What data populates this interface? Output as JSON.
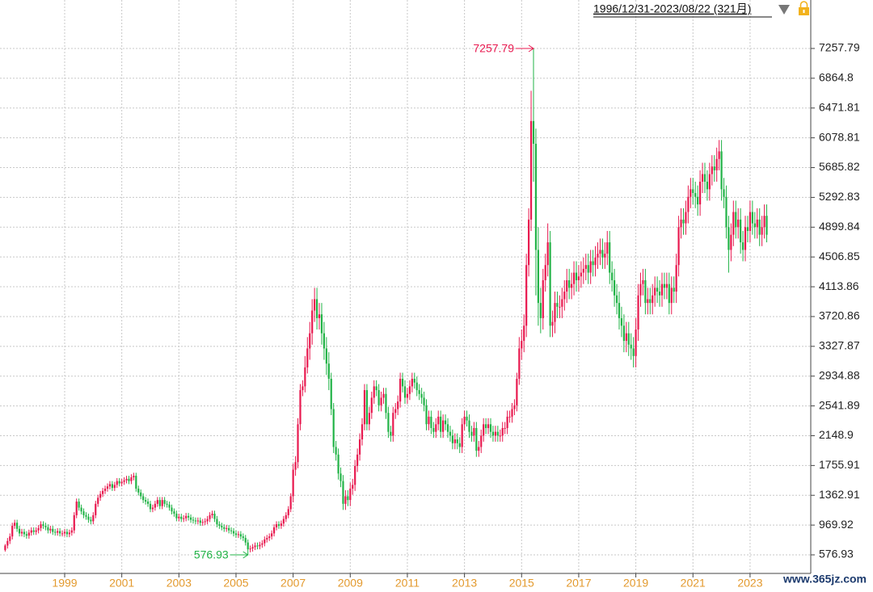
{
  "chart_data": {
    "type": "candlestick",
    "header": "1996/12/31-2023/08/22 (321月)",
    "watermark": "www.365jz.com",
    "up_color": "#e8194f",
    "down_color": "#22b347",
    "grid": true,
    "ylim": [
      332,
      7897
    ],
    "xlim": [
      -2.17,
      338.5
    ],
    "yticks": [
      576.93,
      969.92,
      1362.91,
      1755.91,
      2148.9,
      2541.89,
      2934.88,
      3327.87,
      3720.86,
      4113.86,
      4506.85,
      4899.84,
      5292.83,
      5685.82,
      6078.81,
      6471.81,
      6864.8,
      7257.79
    ],
    "xticks": [
      {
        "value": 25,
        "label": "1999"
      },
      {
        "value": 49,
        "label": "2001"
      },
      {
        "value": 73,
        "label": "2003"
      },
      {
        "value": 97,
        "label": "2005"
      },
      {
        "value": 121,
        "label": "2007"
      },
      {
        "value": 145,
        "label": "2009"
      },
      {
        "value": 169,
        "label": "2011"
      },
      {
        "value": 193,
        "label": "2013"
      },
      {
        "value": 217,
        "label": "2015"
      },
      {
        "value": 241,
        "label": "2017"
      },
      {
        "value": 265,
        "label": "2019"
      },
      {
        "value": 289,
        "label": "2021"
      },
      {
        "value": 313,
        "label": "2023"
      }
    ],
    "open": [
      640,
      700,
      760,
      820,
      960,
      1000,
      920,
      860,
      880,
      850,
      830,
      870,
      900,
      880,
      900,
      930,
      980,
      960,
      940,
      900,
      920,
      880,
      870,
      890,
      860,
      860,
      880,
      850,
      870,
      900,
      1100,
      1280,
      1200,
      1150,
      1100,
      1080,
      1040,
      1020,
      1100,
      1250,
      1330,
      1380,
      1420,
      1450,
      1480,
      1510,
      1460,
      1500,
      1550,
      1520,
      1540,
      1560,
      1580,
      1550,
      1600,
      1620,
      1450,
      1400,
      1350,
      1300,
      1280,
      1250,
      1180,
      1200,
      1250,
      1300,
      1220,
      1300,
      1250,
      1240,
      1200,
      1150,
      1120,
      1060,
      1080,
      1050,
      1060,
      1090,
      1070,
      1040,
      1030,
      1020,
      1030,
      1000,
      1010,
      1020,
      1050,
      1100,
      1120,
      1050,
      980,
      960,
      940,
      920,
      930,
      900,
      890,
      860,
      840,
      850,
      820,
      800,
      740,
      650,
      660,
      680,
      700,
      690,
      710,
      730,
      780,
      800,
      820,
      860,
      940,
      980,
      960,
      990,
      1050,
      1100,
      1180,
      1350,
      1700,
      1800,
      2300,
      2750,
      2800,
      3050,
      3300,
      3500,
      3800,
      3950,
      3700,
      3750,
      3500,
      3300,
      3100,
      2900,
      2500,
      2000,
      1900,
      1650,
      1550,
      1250,
      1350,
      1300,
      1450,
      1500,
      1750,
      1900,
      2100,
      2300,
      2750,
      2300,
      2450,
      2650,
      2800,
      2750,
      2550,
      2650,
      2700,
      2450,
      2200,
      2150,
      2450,
      2500,
      2600,
      2900,
      2800,
      2650,
      2700,
      2800,
      2900,
      2850,
      2750,
      2700,
      2650,
      2550,
      2300,
      2400,
      2250,
      2200,
      2300,
      2400,
      2200,
      2350,
      2300,
      2200,
      2150,
      2050,
      2100,
      2050,
      2000,
      2300,
      2400,
      2350,
      2200,
      2150,
      2250,
      1950,
      2000,
      2150,
      2300,
      2250,
      2300,
      2200,
      2150,
      2200,
      2150,
      2150,
      2250,
      2250,
      2400,
      2400,
      2500,
      2550,
      2900,
      3300,
      3400,
      3600,
      4400,
      5000,
      6300,
      6000,
      4600,
      3900,
      3700,
      4200,
      4400,
      4700,
      3600,
      3650,
      3900,
      3850,
      3850,
      3950,
      4050,
      4200,
      4100,
      4150,
      4300,
      4200,
      4250,
      4300,
      4350,
      4400,
      4300,
      4450,
      4400,
      4500,
      4550,
      4600,
      4500,
      4550,
      4700,
      4300,
      4200,
      4000,
      3900,
      3700,
      3600,
      3400,
      3500,
      3350,
      3300,
      3200,
      3550,
      4000,
      4150,
      4200,
      3900,
      3950,
      3900,
      4000,
      4100,
      4050,
      4000,
      4150,
      4100,
      4150,
      3900,
      4100,
      4050,
      4400,
      4900,
      5000,
      4950,
      5100,
      5300,
      5400,
      5350,
      5300,
      5200,
      5500,
      5600,
      5500,
      5400,
      5600,
      5700,
      5650,
      5800,
      5900,
      5400,
      5300,
      4900,
      4600,
      4800,
      5100,
      4900,
      5000,
      4700,
      4600,
      4900,
      4850,
      5100,
      4950,
      4900,
      5000,
      4800,
      4900,
      5050
    ],
    "high": [
      720,
      800,
      860,
      1000,
      1040,
      1040,
      960,
      920,
      920,
      890,
      910,
      940,
      940,
      940,
      970,
      1020,
      1020,
      1000,
      980,
      960,
      960,
      920,
      930,
      930,
      900,
      920,
      920,
      910,
      940,
      1140,
      1320,
      1320,
      1240,
      1190,
      1140,
      1120,
      1080,
      1140,
      1290,
      1370,
      1420,
      1460,
      1490,
      1520,
      1550,
      1550,
      1540,
      1590,
      1590,
      1580,
      1600,
      1620,
      1620,
      1640,
      1660,
      1660,
      1490,
      1440,
      1390,
      1340,
      1320,
      1290,
      1240,
      1290,
      1340,
      1340,
      1340,
      1340,
      1290,
      1280,
      1240,
      1190,
      1160,
      1120,
      1120,
      1100,
      1130,
      1130,
      1110,
      1080,
      1070,
      1070,
      1070,
      1050,
      1060,
      1090,
      1140,
      1160,
      1160,
      1090,
      1020,
      1000,
      980,
      970,
      970,
      940,
      930,
      900,
      890,
      890,
      860,
      840,
      780,
      700,
      720,
      740,
      740,
      750,
      770,
      820,
      840,
      860,
      900,
      980,
      1020,
      1020,
      1030,
      1090,
      1140,
      1220,
      1390,
      1780,
      1880,
      2380,
      2830,
      2880,
      3200,
      3450,
      3650,
      3950,
      4100,
      4100,
      3900,
      3900,
      3650,
      3450,
      3250,
      2980,
      2580,
      2080,
      1980,
      1730,
      1630,
      1430,
      1430,
      1530,
      1580,
      1830,
      1980,
      2180,
      2380,
      2830,
      2830,
      2530,
      2730,
      2880,
      2880,
      2830,
      2730,
      2780,
      2780,
      2530,
      2280,
      2530,
      2580,
      2680,
      2980,
      2980,
      2880,
      2780,
      2880,
      2980,
      2980,
      2930,
      2830,
      2780,
      2730,
      2630,
      2480,
      2480,
      2330,
      2380,
      2480,
      2480,
      2430,
      2430,
      2380,
      2280,
      2230,
      2180,
      2180,
      2130,
      2380,
      2480,
      2480,
      2430,
      2280,
      2330,
      2330,
      2080,
      2230,
      2380,
      2380,
      2380,
      2380,
      2280,
      2280,
      2280,
      2230,
      2330,
      2330,
      2480,
      2480,
      2580,
      2630,
      2980,
      3450,
      3550,
      3750,
      4550,
      5150,
      6700,
      7257.79,
      6200,
      4900,
      4100,
      4350,
      4550,
      4950,
      4850,
      3800,
      4050,
      4050,
      4000,
      4100,
      4200,
      4350,
      4350,
      4300,
      4450,
      4450,
      4400,
      4450,
      4500,
      4550,
      4550,
      4600,
      4600,
      4650,
      4700,
      4750,
      4750,
      4700,
      4850,
      4850,
      4450,
      4350,
      4150,
      4050,
      3850,
      3750,
      3650,
      3650,
      3500,
      3450,
      3700,
      4150,
      4300,
      4350,
      4350,
      4100,
      4100,
      4150,
      4250,
      4250,
      4200,
      4300,
      4300,
      4300,
      4300,
      4250,
      4250,
      4550,
      5050,
      5150,
      5150,
      5250,
      5450,
      5550,
      5550,
      5500,
      5450,
      5650,
      5750,
      5750,
      5650,
      5750,
      5850,
      5850,
      5950,
      6050,
      6050,
      5550,
      5450,
      5050,
      4950,
      5250,
      5250,
      5150,
      5150,
      4850,
      5050,
      5050,
      5250,
      5250,
      5100,
      5150,
      5150,
      5050,
      5200,
      5200
    ],
    "low": [
      620,
      660,
      720,
      780,
      920,
      880,
      820,
      820,
      810,
      790,
      790,
      830,
      840,
      840,
      860,
      890,
      920,
      900,
      860,
      860,
      840,
      830,
      830,
      820,
      820,
      820,
      810,
      810,
      830,
      860,
      1060,
      1160,
      1110,
      1060,
      1040,
      1000,
      980,
      980,
      1060,
      1210,
      1290,
      1340,
      1380,
      1410,
      1440,
      1420,
      1420,
      1460,
      1480,
      1480,
      1500,
      1520,
      1510,
      1510,
      1560,
      1410,
      1360,
      1310,
      1260,
      1240,
      1210,
      1140,
      1140,
      1160,
      1210,
      1180,
      1180,
      1210,
      1200,
      1160,
      1110,
      1080,
      1020,
      1020,
      1010,
      1010,
      1020,
      1030,
      1000,
      990,
      980,
      980,
      960,
      960,
      970,
      980,
      1010,
      1060,
      1010,
      940,
      920,
      900,
      880,
      880,
      860,
      850,
      820,
      800,
      800,
      780,
      760,
      700,
      576.93,
      610,
      620,
      640,
      650,
      650,
      670,
      690,
      740,
      760,
      780,
      820,
      900,
      920,
      920,
      950,
      1010,
      1060,
      1140,
      1270,
      1620,
      1720,
      2220,
      2670,
      2720,
      2970,
      3150,
      3350,
      3650,
      3550,
      3550,
      3350,
      3150,
      2950,
      2750,
      2420,
      1920,
      1820,
      1570,
      1470,
      1170,
      1170,
      1220,
      1220,
      1370,
      1420,
      1670,
      1820,
      2020,
      2220,
      2220,
      2220,
      2370,
      2570,
      2670,
      2470,
      2470,
      2570,
      2370,
      2120,
      2070,
      2070,
      2370,
      2420,
      2520,
      2720,
      2570,
      2570,
      2620,
      2720,
      2770,
      2670,
      2620,
      2570,
      2470,
      2220,
      2220,
      2170,
      2120,
      2120,
      2220,
      2120,
      2120,
      2220,
      2120,
      2070,
      1970,
      1970,
      1970,
      1920,
      1920,
      2220,
      2270,
      2120,
      2070,
      2070,
      1870,
      1870,
      1920,
      2070,
      2170,
      2170,
      2120,
      2070,
      2070,
      2070,
      2070,
      2070,
      2170,
      2170,
      2320,
      2320,
      2420,
      2470,
      2820,
      3150,
      3250,
      3450,
      4250,
      4850,
      5500,
      4000,
      3600,
      3500,
      3550,
      4050,
      4250,
      3450,
      3450,
      3500,
      3700,
      3700,
      3700,
      3800,
      3900,
      3950,
      3950,
      4000,
      4050,
      4050,
      4100,
      4150,
      4200,
      4150,
      4150,
      4250,
      4250,
      4350,
      4400,
      4350,
      4350,
      4400,
      4150,
      4050,
      3850,
      3750,
      3550,
      3450,
      3250,
      3250,
      3200,
      3150,
      3050,
      3050,
      3400,
      3850,
      4000,
      3750,
      3750,
      3750,
      3750,
      3850,
      3900,
      3850,
      3850,
      3950,
      3950,
      3750,
      3750,
      3900,
      3900,
      4250,
      4750,
      4800,
      4800,
      4950,
      5150,
      5200,
      5150,
      5050,
      5050,
      5350,
      5350,
      5250,
      5250,
      5450,
      5500,
      5500,
      5650,
      5250,
      5150,
      4750,
      4300,
      4450,
      4650,
      4750,
      4750,
      4550,
      4450,
      4450,
      4700,
      4700,
      4800,
      4750,
      4750,
      4650,
      4650,
      4750,
      4700
    ],
    "close": [
      700,
      760,
      820,
      960,
      1000,
      920,
      860,
      880,
      850,
      830,
      870,
      900,
      880,
      900,
      930,
      980,
      960,
      940,
      900,
      920,
      880,
      870,
      890,
      860,
      860,
      880,
      850,
      870,
      900,
      1100,
      1280,
      1200,
      1150,
      1100,
      1080,
      1040,
      1020,
      1100,
      1250,
      1330,
      1380,
      1420,
      1450,
      1480,
      1510,
      1460,
      1500,
      1550,
      1520,
      1540,
      1560,
      1580,
      1550,
      1600,
      1620,
      1450,
      1400,
      1350,
      1300,
      1280,
      1250,
      1180,
      1200,
      1250,
      1300,
      1220,
      1300,
      1250,
      1240,
      1200,
      1150,
      1120,
      1060,
      1080,
      1050,
      1060,
      1090,
      1070,
      1040,
      1030,
      1020,
      1030,
      1000,
      1010,
      1020,
      1050,
      1100,
      1120,
      1050,
      980,
      960,
      940,
      920,
      930,
      900,
      890,
      860,
      840,
      850,
      820,
      800,
      740,
      650,
      660,
      680,
      700,
      690,
      710,
      730,
      780,
      800,
      820,
      860,
      940,
      980,
      960,
      990,
      1050,
      1100,
      1180,
      1350,
      1700,
      1800,
      2300,
      2750,
      2800,
      3050,
      3300,
      3500,
      3800,
      3950,
      3700,
      3750,
      3500,
      3300,
      3100,
      2900,
      2500,
      2000,
      1900,
      1650,
      1550,
      1250,
      1350,
      1300,
      1450,
      1500,
      1750,
      1900,
      2100,
      2300,
      2750,
      2300,
      2450,
      2650,
      2800,
      2750,
      2550,
      2650,
      2700,
      2450,
      2200,
      2150,
      2450,
      2500,
      2600,
      2900,
      2800,
      2650,
      2700,
      2800,
      2900,
      2850,
      2750,
      2700,
      2650,
      2550,
      2300,
      2400,
      2250,
      2200,
      2300,
      2400,
      2200,
      2350,
      2300,
      2200,
      2150,
      2050,
      2100,
      2050,
      2000,
      2300,
      2400,
      2350,
      2200,
      2150,
      2250,
      1950,
      2000,
      2150,
      2300,
      2250,
      2300,
      2200,
      2150,
      2200,
      2150,
      2150,
      2250,
      2250,
      2400,
      2400,
      2500,
      2550,
      2900,
      3300,
      3400,
      3600,
      4400,
      5000,
      6300,
      6000,
      4600,
      3900,
      3700,
      4200,
      4400,
      4700,
      3600,
      3650,
      3900,
      3850,
      3850,
      3950,
      4050,
      4200,
      4100,
      4150,
      4300,
      4200,
      4250,
      4300,
      4350,
      4400,
      4300,
      4450,
      4400,
      4500,
      4550,
      4600,
      4500,
      4550,
      4700,
      4300,
      4200,
      4000,
      3900,
      3700,
      3600,
      3400,
      3500,
      3350,
      3300,
      3200,
      3550,
      4000,
      4150,
      4200,
      3900,
      3950,
      3900,
      4000,
      4100,
      4050,
      4000,
      4150,
      4100,
      4150,
      3900,
      4100,
      4050,
      4400,
      4900,
      5000,
      4950,
      5100,
      5300,
      5400,
      5350,
      5300,
      5200,
      5500,
      5600,
      5500,
      5400,
      5600,
      5700,
      5650,
      5800,
      5900,
      5400,
      5300,
      4900,
      4600,
      4800,
      5100,
      4900,
      5000,
      4700,
      4600,
      4900,
      4850,
      5100,
      4950,
      4900,
      5000,
      4800,
      4900,
      5050,
      4800
    ]
  }
}
